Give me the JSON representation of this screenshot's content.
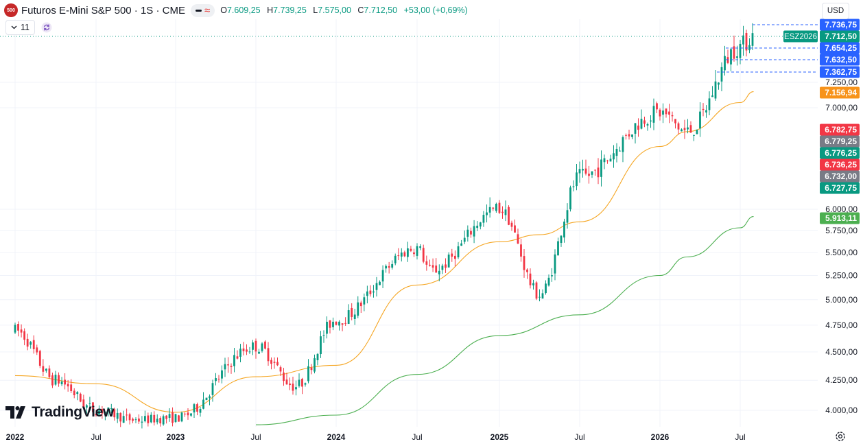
{
  "header": {
    "logo_text": "500",
    "symbol_title": "Futuros E-Mini S&P 500 · 1S · CME",
    "ohlc": {
      "o_label": "O",
      "o_value": "7.609,25",
      "h_label": "H",
      "h_value": "7.739,25",
      "l_label": "L",
      "l_value": "7.575,00",
      "c_label": "C",
      "c_value": "7.712,50",
      "change": "+53,00 (+0,69%)"
    },
    "indicators_count": "11",
    "currency": "USD"
  },
  "watermark": "TradingView",
  "colors": {
    "up": "#089981",
    "down": "#f23645",
    "ma_fast": "#f5a623",
    "ma_slow": "#4caf50",
    "grid": "#f0f3fa",
    "blue_label": "#2962ff",
    "orange_label": "#f7931a",
    "green_label": "#4caf50",
    "teal_label": "#089981",
    "red_label": "#f23645",
    "gray_label": "#787b86"
  },
  "chart_data": {
    "type": "candlestick",
    "symbol_label": "ESZ2026",
    "x_labels": [
      "2022",
      "Jul",
      "2023",
      "Jul",
      "2024",
      "Jul",
      "2025",
      "Jul",
      "2026",
      "Jul"
    ],
    "y_ticks": [
      "4.000,00",
      "4.250,00",
      "4.500,00",
      "4.750,00",
      "5.000,00",
      "5.250,00",
      "5.500,00",
      "5.750,00",
      "6.000,00",
      "7.000,00",
      "7.250,00"
    ],
    "y_tick_values": [
      4000,
      4250,
      4500,
      4750,
      5000,
      5250,
      5500,
      5750,
      6000,
      7000,
      7250
    ],
    "ylim": [
      3830,
      7900
    ],
    "grid": true,
    "approx_weekly_close_path": [
      [
        "2022",
        4700
      ],
      [
        "2022-04",
        4250
      ],
      [
        "Jul 2022",
        4000
      ],
      [
        "2022-10",
        3900
      ],
      [
        "2023",
        3920
      ],
      [
        "Jul 2023",
        4550
      ],
      [
        "2023-10",
        4200
      ],
      [
        "2024",
        4800
      ],
      [
        "Jul 2024",
        5550
      ],
      [
        "2024-08",
        5300
      ],
      [
        "2025",
        6000
      ],
      [
        "2025-04",
        5050
      ],
      [
        "Jul 2025",
        6300
      ],
      [
        "2026",
        6950
      ],
      [
        "2026-03",
        6750
      ],
      [
        "Jul 2026",
        7600
      ],
      [
        "2026-08",
        7710
      ]
    ],
    "ma_fast_path": [
      [
        "2022",
        4290
      ],
      [
        "Jul 2022",
        4220
      ],
      [
        "2023",
        3980
      ],
      [
        "Jul 2023",
        4280
      ],
      [
        "2024",
        4380
      ],
      [
        "Jul 2024",
        5150
      ],
      [
        "2025",
        5620
      ],
      [
        "2025-04",
        5700
      ],
      [
        "Jul 2025",
        5850
      ],
      [
        "2026",
        6600
      ],
      [
        "2026-03",
        6750
      ],
      [
        "Jul 2026",
        7050
      ],
      [
        "2026-08",
        7157
      ]
    ],
    "ma_slow_path": [
      [
        "Jul 2023",
        3850
      ],
      [
        "2024",
        3950
      ],
      [
        "Jul 2024",
        4300
      ],
      [
        "2025",
        4650
      ],
      [
        "Jul 2025",
        4850
      ],
      [
        "2026",
        5250
      ],
      [
        "2026-03",
        5450
      ],
      [
        "Jul 2026",
        5780
      ],
      [
        "2026-08",
        5913
      ]
    ],
    "price_labels": [
      {
        "text": "7.736,75",
        "value": 7736.75,
        "color": "blue"
      },
      {
        "text": "7.712,50",
        "value": 7712.5,
        "color": "teal"
      },
      {
        "text": "7.654,25",
        "value": 7654.25,
        "color": "blue"
      },
      {
        "text": "7.632,50",
        "value": 7632.5,
        "color": "blue"
      },
      {
        "text": "7.362,75",
        "value": 7362.75,
        "color": "blue"
      },
      {
        "text": "7.156,94",
        "value": 7156.94,
        "color": "orange"
      },
      {
        "text": "6.782,75",
        "value": 6782.75,
        "color": "red"
      },
      {
        "text": "6.779,25",
        "value": 6779.25,
        "color": "gray"
      },
      {
        "text": "6.776,25",
        "value": 6776.25,
        "color": "teal"
      },
      {
        "text": "6.736,25",
        "value": 6736.25,
        "color": "red"
      },
      {
        "text": "6.732,00",
        "value": 6732,
        "color": "gray"
      },
      {
        "text": "6.727,75",
        "value": 6727.75,
        "color": "teal"
      },
      {
        "text": "5.913,11",
        "value": 5913.11,
        "color": "green"
      }
    ]
  }
}
